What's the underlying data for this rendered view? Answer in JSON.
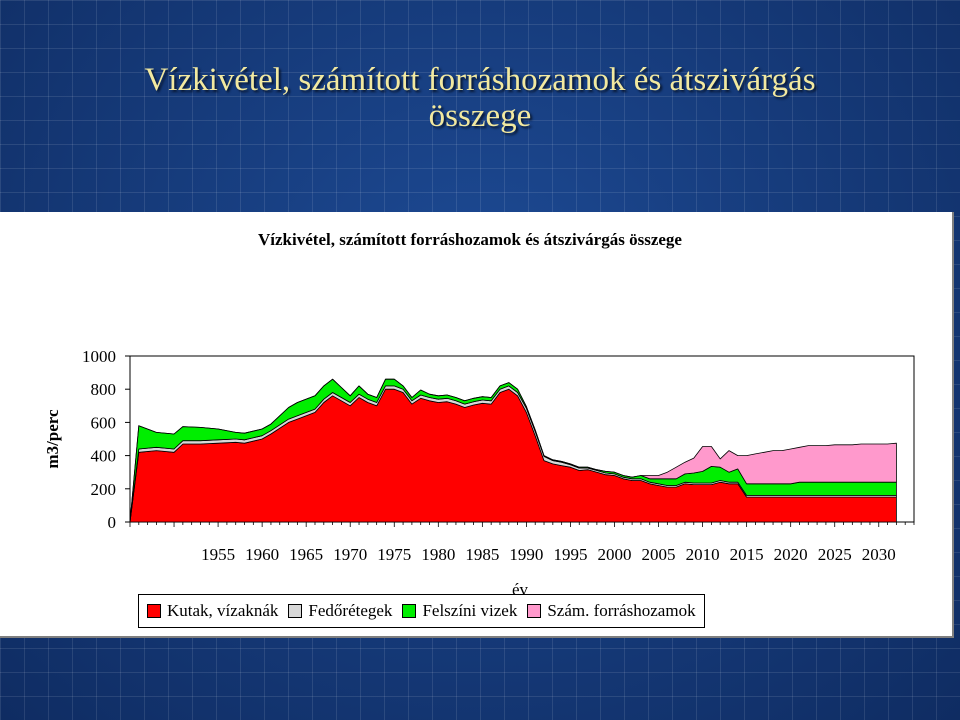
{
  "slide": {
    "title_line1": "Vízkivétel, számított forráshozamok és átszivárgás",
    "title_line2": "összege"
  },
  "chart_data": {
    "type": "area",
    "stacked": true,
    "title": "Vízkivétel, számított forráshozamok és átszivárgás összege",
    "xlabel": "év",
    "ylabel": "m3/perc",
    "xlim": [
      1945,
      2034
    ],
    "ylim": [
      0,
      1000
    ],
    "x_ticks": [
      1955,
      1960,
      1965,
      1970,
      1975,
      1980,
      1985,
      1990,
      1995,
      2000,
      2005,
      2010,
      2015,
      2020,
      2025,
      2030
    ],
    "y_ticks": [
      0,
      200,
      400,
      600,
      800,
      1000
    ],
    "grid": false,
    "legend_position": "bottom",
    "x": [
      1945,
      1946,
      1948,
      1950,
      1951,
      1953,
      1955,
      1957,
      1958,
      1960,
      1961,
      1963,
      1964,
      1966,
      1967,
      1968,
      1969,
      1970,
      1971,
      1972,
      1973,
      1974,
      1975,
      1976,
      1977,
      1978,
      1979,
      1980,
      1981,
      1982,
      1983,
      1984,
      1985,
      1986,
      1987,
      1988,
      1989,
      1990,
      1991,
      1992,
      1993,
      1994,
      1995,
      1996,
      1997,
      1998,
      1999,
      2000,
      2001,
      2002,
      2003,
      2004,
      2005,
      2006,
      2007,
      2008,
      2009,
      2010,
      2011,
      2012,
      2013,
      2014,
      2015,
      2016,
      2017,
      2018,
      2019,
      2020,
      2021,
      2022,
      2023,
      2024,
      2025,
      2026,
      2027,
      2028,
      2029,
      2030,
      2031,
      2032
    ],
    "series": [
      {
        "name": "Kutak, vízaknák",
        "color": "#ff0000",
        "values": [
          0,
          420,
          430,
          420,
          470,
          470,
          475,
          480,
          475,
          500,
          530,
          600,
          620,
          660,
          720,
          760,
          730,
          700,
          750,
          720,
          700,
          800,
          800,
          780,
          710,
          745,
          730,
          720,
          725,
          710,
          690,
          705,
          715,
          710,
          780,
          800,
          760,
          660,
          520,
          370,
          350,
          340,
          330,
          310,
          315,
          300,
          285,
          280,
          260,
          250,
          250,
          230,
          220,
          210,
          210,
          230,
          225,
          225,
          225,
          240,
          230,
          230,
          150,
          150,
          150,
          150,
          150,
          150,
          150,
          150,
          150,
          150,
          150,
          150,
          150,
          150,
          150,
          150,
          150,
          150
        ]
      },
      {
        "name": "Fedőrétegek",
        "color": "#d8d8d8",
        "values": [
          0,
          20,
          20,
          20,
          20,
          20,
          20,
          20,
          20,
          20,
          20,
          20,
          20,
          20,
          20,
          20,
          20,
          20,
          20,
          20,
          20,
          20,
          20,
          20,
          20,
          20,
          20,
          20,
          20,
          20,
          20,
          20,
          20,
          20,
          20,
          20,
          20,
          25,
          25,
          25,
          20,
          20,
          15,
          15,
          10,
          10,
          10,
          10,
          10,
          10,
          10,
          10,
          10,
          10,
          10,
          10,
          10,
          10,
          10,
          10,
          10,
          10,
          10,
          10,
          10,
          10,
          10,
          10,
          10,
          10,
          10,
          10,
          10,
          10,
          10,
          10,
          10,
          10,
          10,
          10
        ]
      },
      {
        "name": "Felszíni vizek",
        "color": "#00ee00",
        "values": [
          0,
          140,
          90,
          90,
          85,
          80,
          65,
          40,
          40,
          40,
          40,
          70,
          80,
          80,
          80,
          80,
          60,
          40,
          50,
          30,
          30,
          40,
          40,
          20,
          20,
          30,
          20,
          20,
          20,
          20,
          20,
          20,
          20,
          20,
          20,
          20,
          20,
          10,
          10,
          5,
          5,
          5,
          5,
          5,
          5,
          5,
          10,
          10,
          10,
          10,
          20,
          20,
          30,
          40,
          40,
          50,
          60,
          70,
          100,
          80,
          60,
          80,
          70,
          70,
          70,
          70,
          70,
          70,
          80,
          80,
          80,
          80,
          80,
          80,
          80,
          80,
          80,
          80,
          80,
          80
        ]
      },
      {
        "name": "Szám. forráshozamok",
        "color": "#ff99cc",
        "values": [
          0,
          0,
          0,
          0,
          0,
          0,
          0,
          0,
          0,
          0,
          0,
          0,
          0,
          0,
          0,
          0,
          0,
          0,
          0,
          0,
          0,
          0,
          0,
          0,
          0,
          0,
          0,
          0,
          0,
          0,
          0,
          0,
          0,
          0,
          0,
          0,
          0,
          0,
          0,
          0,
          0,
          0,
          0,
          0,
          0,
          0,
          0,
          0,
          0,
          0,
          0,
          20,
          20,
          40,
          70,
          70,
          90,
          150,
          120,
          50,
          130,
          80,
          170,
          180,
          190,
          200,
          200,
          210,
          210,
          220,
          220,
          220,
          225,
          225,
          225,
          230,
          230,
          230,
          230,
          235
        ]
      }
    ]
  }
}
